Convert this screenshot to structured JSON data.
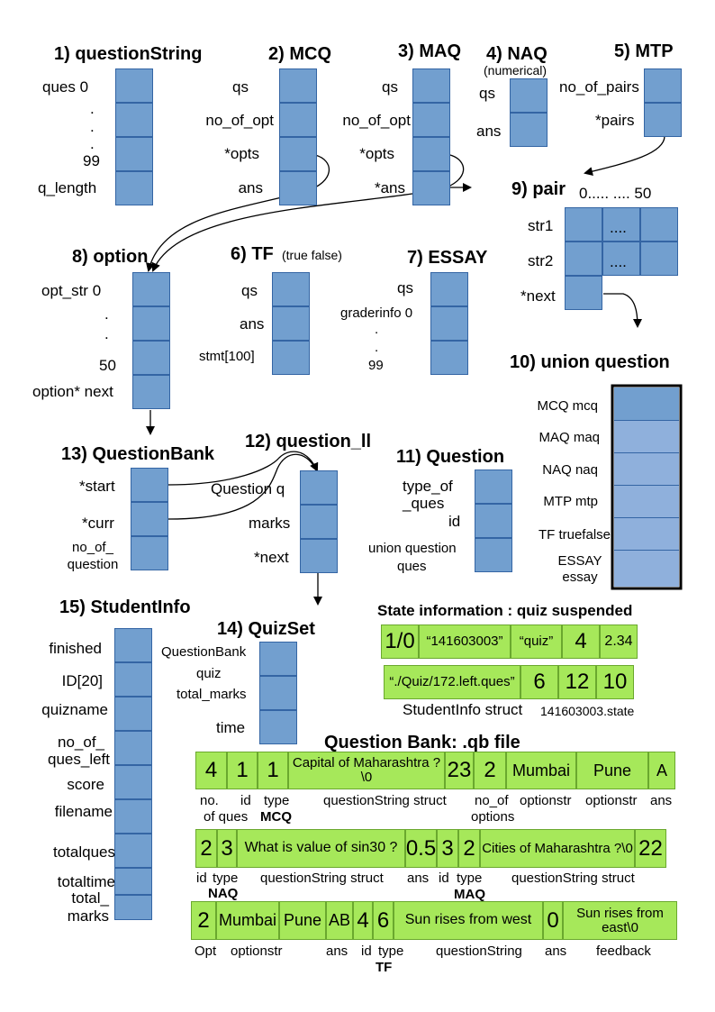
{
  "titles": {
    "s1": "1) questionString",
    "s2": "2) MCQ",
    "s3": "3) MAQ",
    "s4": "4) NAQ",
    "s4_sub": "(numerical)",
    "s5": "5) MTP",
    "s6": "6) TF",
    "s6_sub": "(true false)",
    "s7": "7) ESSAY",
    "s8": "8) option",
    "s9": "9) pair",
    "s9_range": "0..... ....  50",
    "s10": "10) union question",
    "s11": "11) Question",
    "s12": "12) question_ll",
    "s13": "13) QuestionBank",
    "s14": "14) QuizSet",
    "s15": "15) StudentInfo"
  },
  "qstring": {
    "ques0": "ques 0",
    "dot1": ".",
    "dot2": ".",
    "dot3": ".",
    "n99": "99",
    "qlen": "q_length"
  },
  "mcq": {
    "qs": "qs",
    "no_of_opt": "no_of_opt",
    "opts": "*opts",
    "ans": "ans"
  },
  "maq": {
    "qs": "qs",
    "no_of_opt": "no_of_opt",
    "opts": "*opts",
    "ans": "*ans"
  },
  "naq": {
    "qs": "qs",
    "ans": "ans"
  },
  "mtp": {
    "no_of_pairs": "no_of_pairs",
    "pairs": "*pairs"
  },
  "pair": {
    "str1": "str1",
    "str2": "str2",
    "next": "*next",
    "dots1": "....",
    "dots2": "...."
  },
  "option": {
    "opt_str": "opt_str 0",
    "dot1": ".",
    "dot2": ".",
    "n50": "50",
    "next": "option* next"
  },
  "tf": {
    "qs": "qs",
    "ans": "ans",
    "stmt": "stmt[100]"
  },
  "essay": {
    "qs": "qs",
    "grader": "graderinfo 0",
    "dot1": ".",
    "dot2": ".",
    "n99": "99"
  },
  "union": [
    "MCQ mcq",
    "MAQ maq",
    "NAQ naq",
    "MTP mtp",
    "TF truefalse",
    "ESSAY essay"
  ],
  "question_bank": {
    "start": "*start",
    "curr": "*curr",
    "noq1": "no_of_",
    "noq2": "question"
  },
  "question_ll": {
    "q": "Question q",
    "marks": "marks",
    "next": "*next"
  },
  "question": {
    "type1": "type_of",
    "type2": "_ques",
    "id": "id",
    "uq1": "union question",
    "uq2": "ques"
  },
  "student_info": [
    "finished",
    "ID[20]",
    "quizname",
    "no_of_",
    "ques_left",
    "score",
    "filename",
    "totalques",
    "totaltime",
    "total_",
    "marks"
  ],
  "quizset": {
    "qb": "QuestionBank",
    "quiz": "quiz",
    "tm": "total_marks",
    "time": "time"
  },
  "state": {
    "title": "State information : quiz suspended",
    "row1": [
      "1/0",
      "“141603003”",
      "“quiz”",
      "4",
      "2.34"
    ],
    "row2": [
      "“./Quiz/172.left.ques”",
      "6",
      "12",
      "10"
    ],
    "caption": "StudentInfo struct",
    "caption_file": "141603003.state"
  },
  "qb_file": {
    "title": "Question Bank:  .qb file",
    "row1": [
      "4",
      "1",
      "1",
      "Capital of Maharashtra ?\\0",
      "23",
      "2",
      "Mumbai",
      "Pune",
      "A"
    ],
    "row1_labels": [
      "no.",
      "of ques",
      "id",
      "type",
      "MCQ",
      "questionString struct",
      "no_of",
      "options",
      "optionstr",
      "optionstr",
      "ans"
    ],
    "row2": [
      "2",
      "3",
      "What is value of sin30 ?",
      "0.5",
      "3",
      "2",
      "Cities of Maharashtra ?\\0",
      "22"
    ],
    "row2_labels": [
      "id",
      "type",
      "NAQ",
      "questionString struct",
      "ans",
      "id",
      "type",
      "MAQ",
      "questionString struct"
    ],
    "row3": [
      "2",
      "Mumbai",
      "Pune",
      "AB",
      "4",
      "6",
      "Sun rises from west",
      "0",
      "Sun rises from east\\0"
    ],
    "row3_labels": [
      "Opt",
      "optionstr",
      "ans",
      "id",
      "type",
      "TF",
      "questionString",
      "ans",
      "feedback"
    ]
  },
  "colors": {
    "box_fill": "#729fcf",
    "box_border": "#3465a4",
    "union_fill": "#8fb0dc",
    "green_fill": "#a6e85a",
    "green_border": "#6aa82e"
  }
}
